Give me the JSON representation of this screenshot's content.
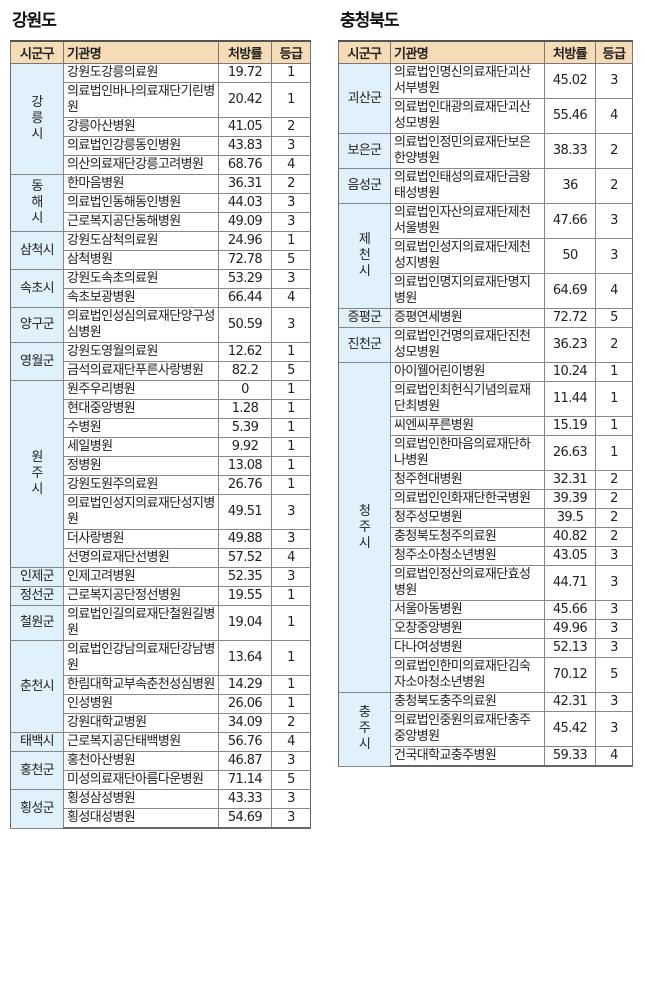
{
  "left": {
    "title": "강원도",
    "headers": [
      "시군구",
      "기관명",
      "처방률",
      "등급"
    ],
    "groups": [
      {
        "region": "강릉시",
        "vertical": true,
        "rows": [
          [
            "강원도강릉의료원",
            "19.72",
            "1"
          ],
          [
            "의료법인바나의료재단기린병원",
            "20.42",
            "1"
          ],
          [
            "강릉아산병원",
            "41.05",
            "2"
          ],
          [
            "의료법인강릉동인병원",
            "43.83",
            "3"
          ],
          [
            "의산의료재단강릉고려병원",
            "68.76",
            "4"
          ]
        ]
      },
      {
        "region": "동해시",
        "vertical": true,
        "rows": [
          [
            "한마음병원",
            "36.31",
            "2"
          ],
          [
            "의료법인동해동인병원",
            "44.03",
            "3"
          ],
          [
            "근로복지공단동해병원",
            "49.09",
            "3"
          ]
        ]
      },
      {
        "region": "삼척시",
        "rows": [
          [
            "강원도삼척의료원",
            "24.96",
            "1"
          ],
          [
            "삼척병원",
            "72.78",
            "5"
          ]
        ]
      },
      {
        "region": "속초시",
        "rows": [
          [
            "강원도속초의료원",
            "53.29",
            "3"
          ],
          [
            "속초보광병원",
            "66.44",
            "4"
          ]
        ]
      },
      {
        "region": "양구군",
        "rows": [
          [
            "의료법인성심의료재단양구성심병원",
            "50.59",
            "3"
          ]
        ]
      },
      {
        "region": "영월군",
        "rows": [
          [
            "강원도영월의료원",
            "12.62",
            "1"
          ],
          [
            "금석의료재단푸른사랑병원",
            "82.2",
            "5"
          ]
        ]
      },
      {
        "region": "원주시",
        "vertical": true,
        "rows": [
          [
            "원주우리병원",
            "0",
            "1"
          ],
          [
            "현대중앙병원",
            "1.28",
            "1"
          ],
          [
            "수병원",
            "5.39",
            "1"
          ],
          [
            "세일병원",
            "9.92",
            "1"
          ],
          [
            "정병원",
            "13.08",
            "1"
          ],
          [
            "강원도원주의료원",
            "26.76",
            "1"
          ],
          [
            "의료법인성지의료재단성지병원",
            "49.51",
            "3"
          ],
          [
            "더사랑병원",
            "49.88",
            "3"
          ],
          [
            "선명의료재단선병원",
            "57.52",
            "4"
          ]
        ]
      },
      {
        "region": "인제군",
        "rows": [
          [
            "인제고려병원",
            "52.35",
            "3"
          ]
        ]
      },
      {
        "region": "정선군",
        "rows": [
          [
            "근로복지공단정선병원",
            "19.55",
            "1"
          ]
        ]
      },
      {
        "region": "철원군",
        "rows": [
          [
            "의료법인길의료재단철원길병원",
            "19.04",
            "1"
          ]
        ]
      },
      {
        "region": "춘천시",
        "rows": [
          [
            "의료법인강남의료재단강남병원",
            "13.64",
            "1"
          ],
          [
            "한림대학교부속춘천성심병원",
            "14.29",
            "1"
          ],
          [
            "인성병원",
            "26.06",
            "1"
          ],
          [
            "강원대학교병원",
            "34.09",
            "2"
          ]
        ]
      },
      {
        "region": "태백시",
        "rows": [
          [
            "근로복지공단태백병원",
            "56.76",
            "4"
          ]
        ]
      },
      {
        "region": "홍천군",
        "rows": [
          [
            "홍천아산병원",
            "46.87",
            "3"
          ],
          [
            "미성의료재단아름다운병원",
            "71.14",
            "5"
          ]
        ]
      },
      {
        "region": "횡성군",
        "rows": [
          [
            "횡성삼성병원",
            "43.33",
            "3"
          ],
          [
            "횡성대성병원",
            "54.69",
            "3"
          ]
        ]
      }
    ]
  },
  "right": {
    "title": "충청북도",
    "headers": [
      "시군구",
      "기관명",
      "처방률",
      "등급"
    ],
    "groups": [
      {
        "region": "괴산군",
        "rows": [
          [
            "의료법인명신의료재단괴산서부병원",
            "45.02",
            "3"
          ],
          [
            "의료법인대광의료재단괴산성모병원",
            "55.46",
            "4"
          ]
        ]
      },
      {
        "region": "보은군",
        "rows": [
          [
            "의료법인정민의료재단보은한양병원",
            "38.33",
            "2"
          ]
        ]
      },
      {
        "region": "음성군",
        "rows": [
          [
            "의료법인태성의료재단금왕태성병원",
            "36",
            "2"
          ]
        ]
      },
      {
        "region": "제천시",
        "vertical": true,
        "rows": [
          [
            "의료법인자산의료재단제천서울병원",
            "47.66",
            "3"
          ],
          [
            "의료법인성지의료재단제천성지병원",
            "50",
            "3"
          ],
          [
            "의료법인명지의료재단명지병원",
            "64.69",
            "4"
          ]
        ]
      },
      {
        "region": "증평군",
        "rows": [
          [
            "증평연세병원",
            "72.72",
            "5"
          ]
        ]
      },
      {
        "region": "진천군",
        "rows": [
          [
            "의료법인건명의료재단진천성모병원",
            "36.23",
            "2"
          ]
        ]
      },
      {
        "region": "청주시",
        "vertical": true,
        "rows": [
          [
            "아이웰어린이병원",
            "10.24",
            "1"
          ],
          [
            "의료법인최헌식기념의료재단최병원",
            "11.44",
            "1"
          ],
          [
            "씨엔씨푸른병원",
            "15.19",
            "1"
          ],
          [
            "의료법인한마음의료재단하나병원",
            "26.63",
            "1"
          ],
          [
            "청주현대병원",
            "32.31",
            "2"
          ],
          [
            "의료법인인화재단한국병원",
            "39.39",
            "2"
          ],
          [
            "청주성모병원",
            "39.5",
            "2"
          ],
          [
            "충청북도청주의료원",
            "40.82",
            "2"
          ],
          [
            "청주소아청소년병원",
            "43.05",
            "3"
          ],
          [
            "의료법인정산의료재단효성병원",
            "44.71",
            "3"
          ],
          [
            "서울아동병원",
            "45.66",
            "3"
          ],
          [
            "오창중앙병원",
            "49.96",
            "3"
          ],
          [
            "다나여성병원",
            "52.13",
            "3"
          ],
          [
            "의료법인한미의료재단김숙자소아청소년병원",
            "70.12",
            "5"
          ]
        ]
      },
      {
        "region": "충주시",
        "vertical": true,
        "rows": [
          [
            "충청북도충주의료원",
            "42.31",
            "3"
          ],
          [
            "의료법인중원의료재단충주중앙병원",
            "45.42",
            "3"
          ],
          [
            "건국대학교충주병원",
            "59.33",
            "4"
          ]
        ]
      }
    ]
  }
}
